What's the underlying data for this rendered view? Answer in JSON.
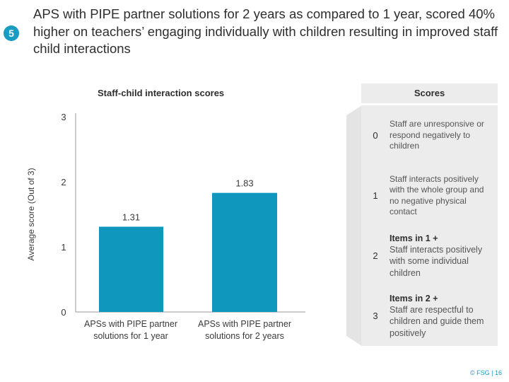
{
  "slide": {
    "badge": "5",
    "title": "APS with PIPE partner solutions for 2 years as compared to 1 year, scored 40% higher on teachers’ engaging individually with children resulting in improved staff child interactions",
    "footer": "© FSG | 16"
  },
  "colors": {
    "accent": "#1a9bc1",
    "bar": "#0f97bd",
    "panel": "#ececec",
    "chevron": "#e4e4e4"
  },
  "chart_data": {
    "type": "bar",
    "title": "Staff-child interaction scores",
    "ylabel": "Average score (Out of 3)",
    "xlabel": "",
    "categories": [
      "APSs with PIPE partner solutions for 1 year",
      "APSs with PIPE partner solutions for 2 years"
    ],
    "category_lines": [
      [
        "APSs with PIPE partner",
        "solutions for 1 year"
      ],
      [
        "APSs with PIPE partner",
        "solutions for 2 years"
      ]
    ],
    "values": [
      1.31,
      1.83
    ],
    "data_labels": [
      "1.31",
      "1.83"
    ],
    "ylim": [
      0,
      3
    ],
    "yticks": [
      "0",
      "1",
      "2",
      "3"
    ],
    "grid": false,
    "legend": "none"
  },
  "scores": {
    "header": "Scores",
    "items": [
      {
        "score": "0",
        "bold": "",
        "text": "Staff are unresponsive or respond negatively to children"
      },
      {
        "score": "1",
        "bold": "",
        "text": "Staff interacts positively with the whole group and no negative physical contact"
      },
      {
        "score": "2",
        "bold": "Items in 1 +",
        "text": "Staff interacts positively with some individual children"
      },
      {
        "score": "3",
        "bold": "Items in 2 +",
        "text": "Staff are respectful to children and guide them positively"
      }
    ]
  }
}
